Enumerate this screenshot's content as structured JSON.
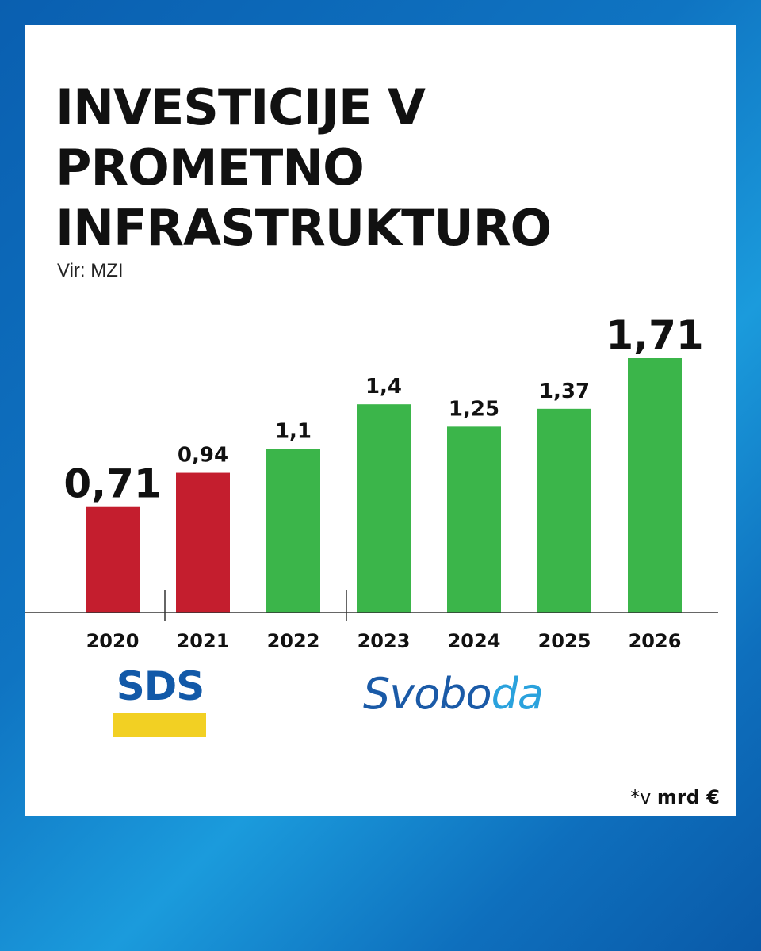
{
  "title_lines": [
    "INVESTICIJE V",
    "PROMETNO",
    "INFRASTRUKTURO"
  ],
  "source": "Vir: MZI",
  "unit": {
    "prefix": "*v",
    "main": "mrd €"
  },
  "logos": {
    "sds": "SDS",
    "svoboda_part1": "Svobo",
    "svoboda_part2": "da"
  },
  "colors": {
    "sds_bar": "#c41e2e",
    "svoboda_bar": "#3bb54a",
    "background_blue": "#0f74c2",
    "sds_logo_blue": "#1259a8",
    "sds_logo_yellow": "#f2d023",
    "svoboda_logo_light": "#2aa2dd"
  },
  "chart_data": {
    "type": "bar",
    "categories": [
      "2020",
      "2021",
      "2022",
      "2023",
      "2024",
      "2025",
      "2026"
    ],
    "values": [
      0.71,
      0.94,
      1.1,
      1.4,
      1.25,
      1.37,
      1.71
    ],
    "value_labels": [
      "0,71",
      "0,94",
      "1,1",
      "1,4",
      "1,25",
      "1,37",
      "1,71"
    ],
    "emphasized": [
      true,
      false,
      false,
      false,
      false,
      false,
      true
    ],
    "bar_groups": [
      "SDS",
      "SDS",
      "Svoboda",
      "Svoboda",
      "Svoboda",
      "Svoboda",
      "Svoboda"
    ],
    "ylim": [
      0,
      1.71
    ],
    "title": "INVESTICIJE V PROMETNO INFRASTRUKTURO",
    "xlabel": "",
    "ylabel": "",
    "grid": false,
    "legend": "none"
  }
}
